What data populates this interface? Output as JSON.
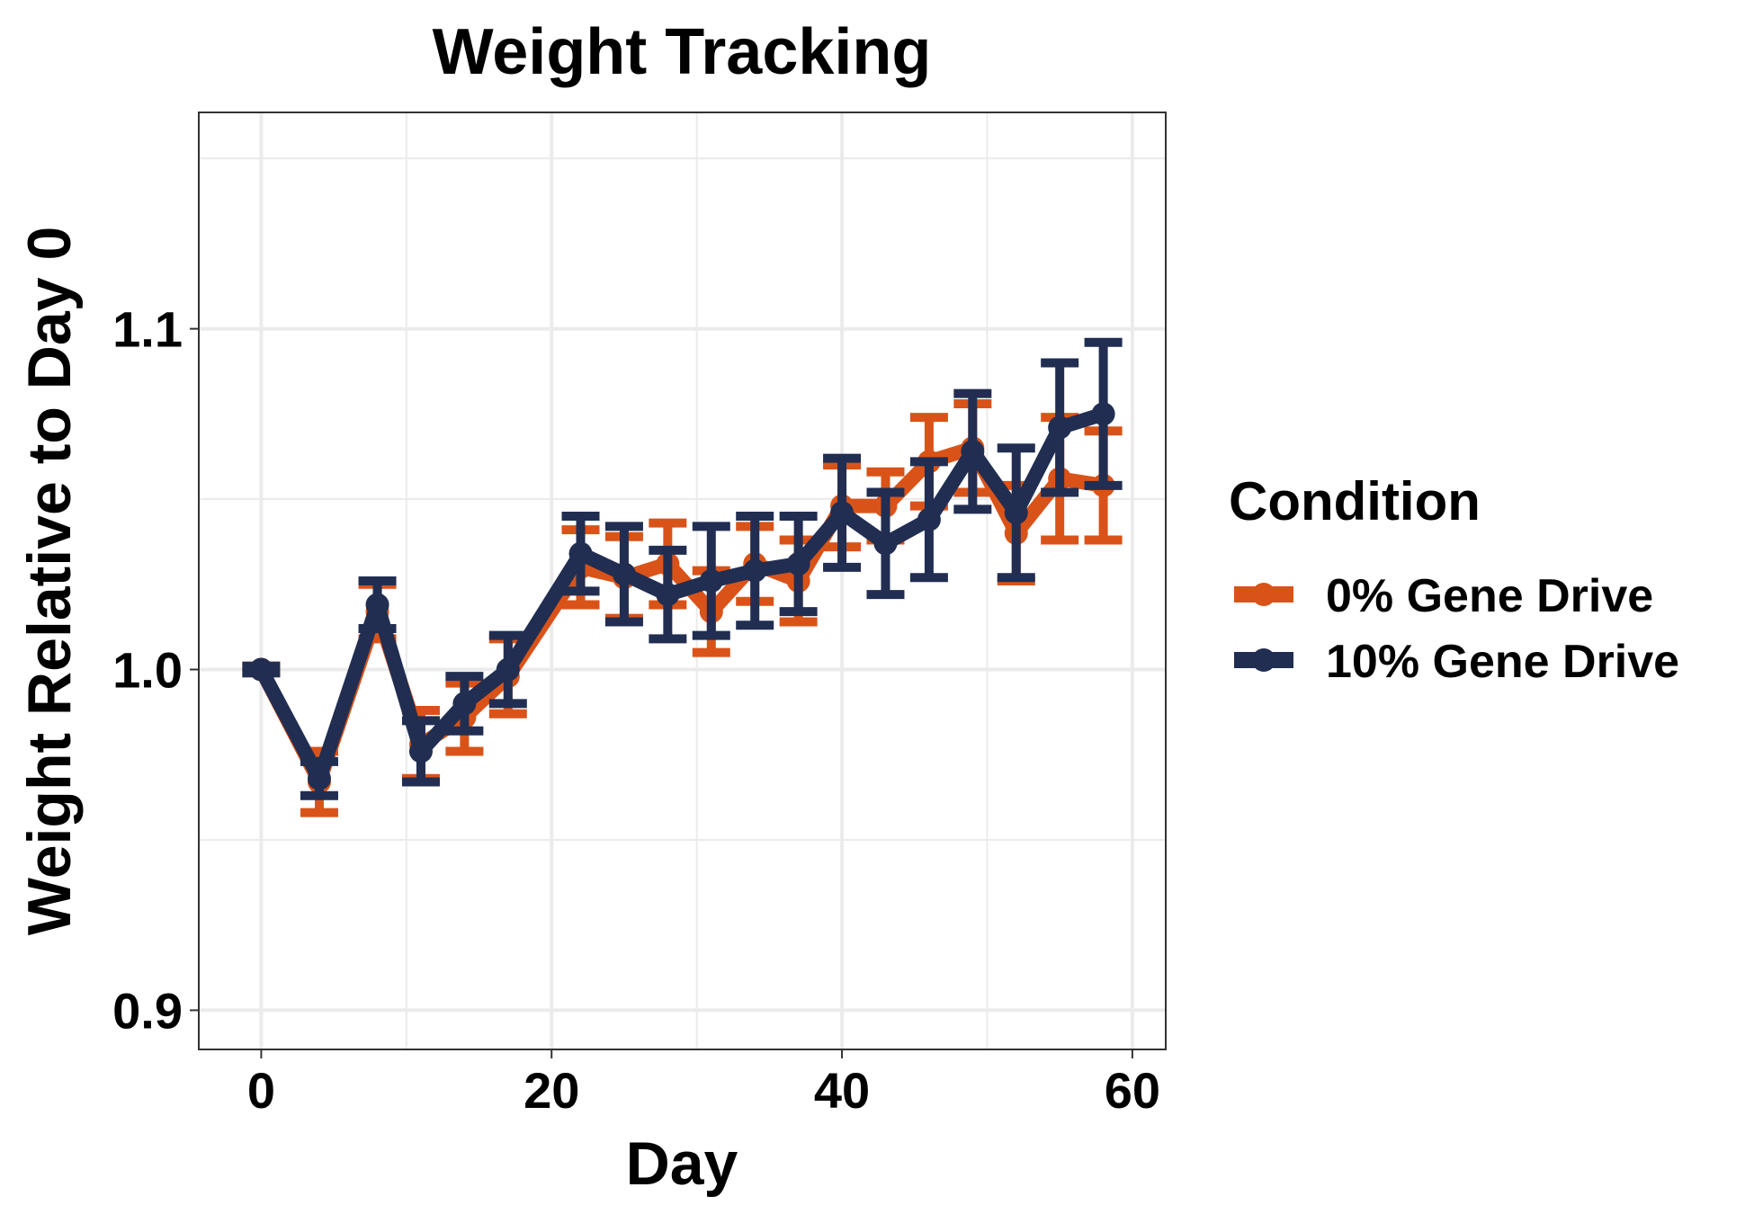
{
  "chart_data": {
    "type": "line",
    "title": "Weight Tracking",
    "xlabel": "Day",
    "ylabel": "Weight Relative to Day 0",
    "xlim": [
      -4.3,
      62.3
    ],
    "ylim": [
      0.8885,
      1.1635
    ],
    "x_ticks": [
      "0",
      "20",
      "40",
      "60"
    ],
    "y_ticks": [
      "0.9",
      "1.0",
      "1.1"
    ],
    "grid": true,
    "legend": {
      "title": "Condition",
      "position": "right"
    },
    "series": [
      {
        "name": "0% Gene Drive",
        "color": "#D95319",
        "points": [
          {
            "x": 0,
            "y": 1.0,
            "err": 0.001
          },
          {
            "x": 4,
            "y": 0.967,
            "err": 0.009
          },
          {
            "x": 8,
            "y": 1.017,
            "err": 0.008
          },
          {
            "x": 11,
            "y": 0.978,
            "err": 0.01
          },
          {
            "x": 14,
            "y": 0.986,
            "err": 0.01
          },
          {
            "x": 17,
            "y": 0.998,
            "err": 0.011
          },
          {
            "x": 22,
            "y": 1.03,
            "err": 0.011
          },
          {
            "x": 25,
            "y": 1.027,
            "err": 0.012
          },
          {
            "x": 28,
            "y": 1.031,
            "err": 0.012
          },
          {
            "x": 31,
            "y": 1.017,
            "err": 0.012
          },
          {
            "x": 34,
            "y": 1.031,
            "err": 0.011
          },
          {
            "x": 37,
            "y": 1.026,
            "err": 0.012
          },
          {
            "x": 40,
            "y": 1.048,
            "err": 0.012
          },
          {
            "x": 43,
            "y": 1.048,
            "err": 0.01
          },
          {
            "x": 46,
            "y": 1.061,
            "err": 0.013
          },
          {
            "x": 49,
            "y": 1.065,
            "err": 0.013
          },
          {
            "x": 52,
            "y": 1.04,
            "err": 0.014
          },
          {
            "x": 55,
            "y": 1.056,
            "err": 0.018
          },
          {
            "x": 58,
            "y": 1.054,
            "err": 0.016
          }
        ]
      },
      {
        "name": "10% Gene Drive",
        "color": "#212E52",
        "points": [
          {
            "x": 0,
            "y": 1.0,
            "err": 0.001
          },
          {
            "x": 4,
            "y": 0.968,
            "err": 0.005
          },
          {
            "x": 8,
            "y": 1.019,
            "err": 0.007
          },
          {
            "x": 11,
            "y": 0.976,
            "err": 0.009
          },
          {
            "x": 14,
            "y": 0.99,
            "err": 0.008
          },
          {
            "x": 17,
            "y": 1.0,
            "err": 0.01
          },
          {
            "x": 22,
            "y": 1.034,
            "err": 0.011
          },
          {
            "x": 25,
            "y": 1.028,
            "err": 0.014
          },
          {
            "x": 28,
            "y": 1.022,
            "err": 0.013
          },
          {
            "x": 31,
            "y": 1.026,
            "err": 0.016
          },
          {
            "x": 34,
            "y": 1.029,
            "err": 0.016
          },
          {
            "x": 37,
            "y": 1.031,
            "err": 0.014
          },
          {
            "x": 40,
            "y": 1.046,
            "err": 0.016
          },
          {
            "x": 43,
            "y": 1.037,
            "err": 0.015
          },
          {
            "x": 46,
            "y": 1.044,
            "err": 0.017
          },
          {
            "x": 49,
            "y": 1.064,
            "err": 0.017
          },
          {
            "x": 52,
            "y": 1.046,
            "err": 0.019
          },
          {
            "x": 55,
            "y": 1.071,
            "err": 0.019
          },
          {
            "x": 58,
            "y": 1.075,
            "err": 0.021
          }
        ]
      }
    ]
  }
}
